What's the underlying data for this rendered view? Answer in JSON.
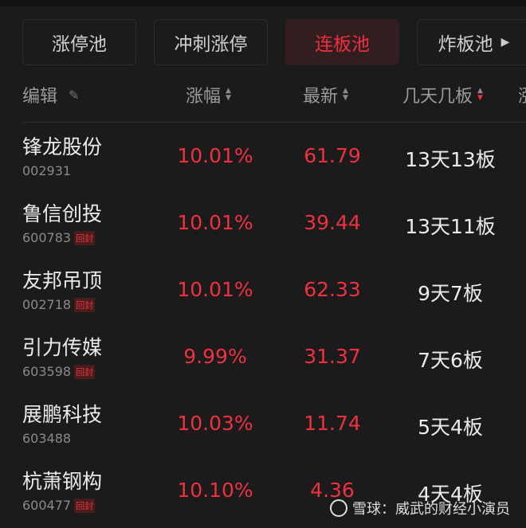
{
  "tabs": [
    {
      "label": "涨停池",
      "active": false
    },
    {
      "label": "冲刺涨停",
      "active": false
    },
    {
      "label": "连板池",
      "active": true
    },
    {
      "label": "炸板池",
      "active": false
    }
  ],
  "tab_more_icon": "triangle-right-icon",
  "header": {
    "edit": "编辑",
    "change": "涨幅",
    "latest": "最新",
    "streak": "几天几板",
    "streak_sort": "descending",
    "cut": "涨"
  },
  "colors": {
    "up": "#f0303f",
    "background": "#1b1b1b"
  },
  "rows": [
    {
      "name": "锋龙股份",
      "code": "002931",
      "tag": "",
      "change": "10.01%",
      "price": "61.79",
      "streak": "13天13板"
    },
    {
      "name": "鲁信创投",
      "code": "600783",
      "tag": "回封",
      "change": "10.01%",
      "price": "39.44",
      "streak": "13天11板"
    },
    {
      "name": "友邦吊顶",
      "code": "002718",
      "tag": "回封",
      "change": "10.01%",
      "price": "62.33",
      "streak": "9天7板"
    },
    {
      "name": "引力传媒",
      "code": "603598",
      "tag": "回封",
      "change": "9.99%",
      "price": "31.37",
      "streak": "7天6板"
    },
    {
      "name": "展鹏科技",
      "code": "603488",
      "tag": "",
      "change": "10.03%",
      "price": "11.74",
      "streak": "5天4板"
    },
    {
      "name": "杭萧钢构",
      "code": "600477",
      "tag": "回封",
      "change": "10.10%",
      "price": "4.36",
      "streak": "4天4板"
    }
  ],
  "watermark": "雪球：威武的财经小演员"
}
